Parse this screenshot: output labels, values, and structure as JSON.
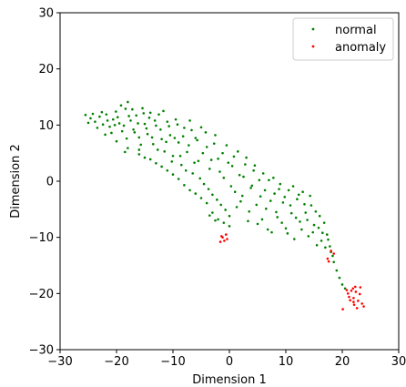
{
  "chart_data": {
    "type": "scatter",
    "title": "",
    "xlabel": "Dimension 1",
    "ylabel": "Dimension 2",
    "xlim": [
      -30,
      30
    ],
    "ylim": [
      -30,
      30
    ],
    "xticks": [
      -30,
      -20,
      -10,
      0,
      10,
      20,
      30
    ],
    "yticks": [
      -30,
      -20,
      -10,
      0,
      10,
      20,
      30
    ],
    "xtick_labels": [
      "−30",
      "−20",
      "−10",
      "0",
      "10",
      "20",
      "30"
    ],
    "ytick_labels": [
      "−30",
      "−20",
      "−10",
      "0",
      "10",
      "20",
      "30"
    ],
    "grid": false,
    "legend_position": "top-right",
    "series": [
      {
        "name": "normal",
        "color": "#008000",
        "points": [
          [
            -25.5,
            11.8
          ],
          [
            -24.6,
            11.2
          ],
          [
            -23.8,
            10.6
          ],
          [
            -23.0,
            11.5
          ],
          [
            -22.4,
            10.1
          ],
          [
            -21.8,
            11.9
          ],
          [
            -21.2,
            9.7
          ],
          [
            -20.6,
            11.0
          ],
          [
            -20.1,
            12.4
          ],
          [
            -19.5,
            10.3
          ],
          [
            -19.0,
            8.9
          ],
          [
            -18.4,
            12.9
          ],
          [
            -18.0,
            14.1
          ],
          [
            -17.5,
            10.8
          ],
          [
            -17.0,
            9.2
          ],
          [
            -16.5,
            11.7
          ],
          [
            -16.0,
            7.8
          ],
          [
            -15.4,
            13.0
          ],
          [
            -15.0,
            10.2
          ],
          [
            -14.5,
            8.4
          ],
          [
            -14.0,
            12.2
          ],
          [
            -13.5,
            6.6
          ],
          [
            -13.0,
            9.9
          ],
          [
            -12.5,
            11.9
          ],
          [
            -12.0,
            7.5
          ],
          [
            -11.5,
            5.3
          ],
          [
            -11.0,
            10.6
          ],
          [
            -10.5,
            8.2
          ],
          [
            -10.0,
            4.5
          ],
          [
            -9.5,
            11.0
          ],
          [
            -9.0,
            6.9
          ],
          [
            -8.5,
            2.9
          ],
          [
            -8.0,
            9.5
          ],
          [
            -7.5,
            5.2
          ],
          [
            -7.0,
            10.8
          ],
          [
            -6.5,
            1.4
          ],
          [
            -6.0,
            7.7
          ],
          [
            -5.5,
            3.6
          ],
          [
            -5.0,
            9.6
          ],
          [
            -4.5,
            -0.5
          ],
          [
            -4.0,
            6.1
          ],
          [
            -3.5,
            2.2
          ],
          [
            -3.0,
            -2.4
          ],
          [
            -2.5,
            8.2
          ],
          [
            -2.0,
            4.0
          ],
          [
            -1.5,
            -4.2
          ],
          [
            -1.0,
            0.6
          ],
          [
            -0.5,
            6.4
          ],
          [
            0.0,
            -6.2
          ],
          [
            0.5,
            2.7
          ],
          [
            1.0,
            -1.9
          ],
          [
            1.5,
            5.3
          ],
          [
            2.0,
            -3.6
          ],
          [
            2.5,
            0.8
          ],
          [
            3.0,
            4.2
          ],
          [
            3.5,
            -5.4
          ],
          [
            4.0,
            -0.8
          ],
          [
            4.5,
            2.8
          ],
          [
            5.0,
            -7.6
          ],
          [
            5.5,
            -2.7
          ],
          [
            6.0,
            1.4
          ],
          [
            6.5,
            -4.9
          ],
          [
            7.0,
            0.2
          ],
          [
            7.5,
            -9.1
          ],
          [
            8.0,
            -2.2
          ],
          [
            8.5,
            -6.4
          ],
          [
            9.0,
            -0.5
          ],
          [
            9.5,
            -3.8
          ],
          [
            10.0,
            -8.4
          ],
          [
            10.5,
            -1.6
          ],
          [
            11.0,
            -5.7
          ],
          [
            11.5,
            -10.3
          ],
          [
            12.0,
            -3.2
          ],
          [
            12.5,
            -7.2
          ],
          [
            13.0,
            -1.9
          ],
          [
            13.5,
            -5.6
          ],
          [
            14.0,
            -9.8
          ],
          [
            14.5,
            -4.3
          ],
          [
            15.0,
            -7.8
          ],
          [
            15.5,
            -11.4
          ],
          [
            16.0,
            -6.2
          ],
          [
            16.5,
            -9.2
          ],
          [
            17.0,
            -11.8
          ],
          [
            17.5,
            -10.4
          ],
          [
            18.0,
            -12.6
          ],
          [
            18.5,
            -14.4
          ],
          [
            19.0,
            -15.9
          ],
          [
            19.5,
            -17.2
          ],
          [
            20.0,
            -18.4
          ],
          [
            20.5,
            -19.1
          ],
          [
            -25.0,
            10.4
          ],
          [
            -24.2,
            12.0
          ],
          [
            -23.4,
            9.5
          ],
          [
            -22.6,
            12.3
          ],
          [
            -21.6,
            10.8
          ],
          [
            -20.9,
            8.6
          ],
          [
            -20.3,
            10.0
          ],
          [
            -19.8,
            11.4
          ],
          [
            -19.2,
            13.5
          ],
          [
            -18.7,
            9.9
          ],
          [
            -18.2,
            7.6
          ],
          [
            -17.8,
            11.6
          ],
          [
            -17.2,
            12.8
          ],
          [
            -16.8,
            8.7
          ],
          [
            -16.2,
            10.3
          ],
          [
            -15.7,
            6.5
          ],
          [
            -15.2,
            12.1
          ],
          [
            -14.7,
            9.4
          ],
          [
            -14.2,
            11.3
          ],
          [
            -13.7,
            7.8
          ],
          [
            -13.2,
            10.8
          ],
          [
            -12.7,
            5.6
          ],
          [
            -12.2,
            9.2
          ],
          [
            -11.7,
            12.5
          ],
          [
            -11.2,
            7.0
          ],
          [
            -10.7,
            9.8
          ],
          [
            -10.2,
            3.5
          ],
          [
            -9.7,
            7.7
          ],
          [
            -9.2,
            10.1
          ],
          [
            -8.7,
            4.5
          ],
          [
            -8.2,
            8.0
          ],
          [
            -7.7,
            1.9
          ],
          [
            -7.2,
            6.4
          ],
          [
            -6.7,
            9.1
          ],
          [
            -6.2,
            3.3
          ],
          [
            -5.7,
            7.3
          ],
          [
            -5.2,
            0.5
          ],
          [
            -4.7,
            5.0
          ],
          [
            -4.2,
            8.7
          ],
          [
            -3.7,
            -1.4
          ],
          [
            -3.2,
            3.8
          ],
          [
            -2.7,
            6.7
          ],
          [
            -2.2,
            -3.3
          ],
          [
            -1.7,
            1.7
          ],
          [
            -1.2,
            5.0
          ],
          [
            -0.7,
            -5.1
          ],
          [
            -0.2,
            3.3
          ],
          [
            0.3,
            -0.9
          ],
          [
            0.8,
            4.4
          ],
          [
            1.3,
            -4.6
          ],
          [
            1.8,
            1.1
          ],
          [
            2.3,
            -2.6
          ],
          [
            2.8,
            3.0
          ],
          [
            3.3,
            -7.1
          ],
          [
            3.8,
            -1.2
          ],
          [
            4.3,
            1.9
          ],
          [
            4.8,
            -4.2
          ],
          [
            5.3,
            0.2
          ],
          [
            5.8,
            -6.8
          ],
          [
            6.3,
            -1.6
          ],
          [
            6.8,
            -8.6
          ],
          [
            7.3,
            -3.5
          ],
          [
            7.8,
            0.6
          ],
          [
            8.3,
            -5.5
          ],
          [
            8.8,
            -1.4
          ],
          [
            9.3,
            -7.4
          ],
          [
            9.8,
            -2.8
          ],
          [
            10.3,
            -9.3
          ],
          [
            10.8,
            -4.3
          ],
          [
            11.3,
            -0.9
          ],
          [
            11.8,
            -6.5
          ],
          [
            12.3,
            -2.4
          ],
          [
            12.8,
            -8.6
          ],
          [
            13.3,
            -4.1
          ],
          [
            13.8,
            -6.9
          ],
          [
            14.3,
            -2.6
          ],
          [
            14.8,
            -9.1
          ],
          [
            15.3,
            -5.4
          ],
          [
            15.8,
            -8.3
          ],
          [
            16.3,
            -10.6
          ],
          [
            16.8,
            -7.4
          ],
          [
            17.3,
            -9.5
          ],
          [
            17.8,
            -11.6
          ],
          [
            18.3,
            -13.3
          ],
          [
            -22.0,
            8.3
          ],
          [
            -20.0,
            7.1
          ],
          [
            -18.0,
            5.9
          ],
          [
            -16.0,
            4.8
          ],
          [
            -14.0,
            3.9
          ],
          [
            -12.0,
            2.6
          ],
          [
            -10.0,
            1.2
          ],
          [
            -8.0,
            -0.7
          ],
          [
            -6.0,
            -2.2
          ],
          [
            -4.0,
            -3.9
          ],
          [
            -3.0,
            -5.6
          ],
          [
            -2.0,
            -6.8
          ],
          [
            -1.0,
            -7.4
          ],
          [
            -2.5,
            -7.0
          ],
          [
            -3.5,
            -6.1
          ],
          [
            0.0,
            -8.0
          ],
          [
            -16.0,
            5.6
          ],
          [
            -18.5,
            5.2
          ],
          [
            -7.0,
            -1.6
          ],
          [
            -5.0,
            -3.0
          ],
          [
            -9.0,
            0.4
          ],
          [
            -11.0,
            1.9
          ],
          [
            -13.0,
            3.2
          ],
          [
            -15.0,
            4.2
          ]
        ]
      },
      {
        "name": "anomaly",
        "color": "#ff0000",
        "points": [
          [
            -1.6,
            -10.8
          ],
          [
            -1.2,
            -10.0
          ],
          [
            -0.9,
            -10.6
          ],
          [
            -0.6,
            -9.5
          ],
          [
            -1.4,
            -9.8
          ],
          [
            -0.4,
            -10.3
          ],
          [
            18.0,
            -12.4
          ],
          [
            18.5,
            -12.9
          ],
          [
            17.6,
            -14.3
          ],
          [
            17.4,
            -13.8
          ],
          [
            20.8,
            -19.4
          ],
          [
            21.2,
            -20.6
          ],
          [
            21.6,
            -19.5
          ],
          [
            22.0,
            -20.8
          ],
          [
            22.4,
            -19.7
          ],
          [
            22.8,
            -21.3
          ],
          [
            23.1,
            -20.1
          ],
          [
            23.5,
            -21.8
          ],
          [
            21.4,
            -21.2
          ],
          [
            22.1,
            -22.0
          ],
          [
            21.9,
            -19.1
          ],
          [
            22.6,
            -22.6
          ],
          [
            23.8,
            -22.3
          ],
          [
            20.1,
            -22.8
          ],
          [
            21.0,
            -20.0
          ],
          [
            22.3,
            -18.8
          ],
          [
            23.2,
            -18.9
          ],
          [
            22.0,
            -21.5
          ]
        ]
      }
    ]
  }
}
